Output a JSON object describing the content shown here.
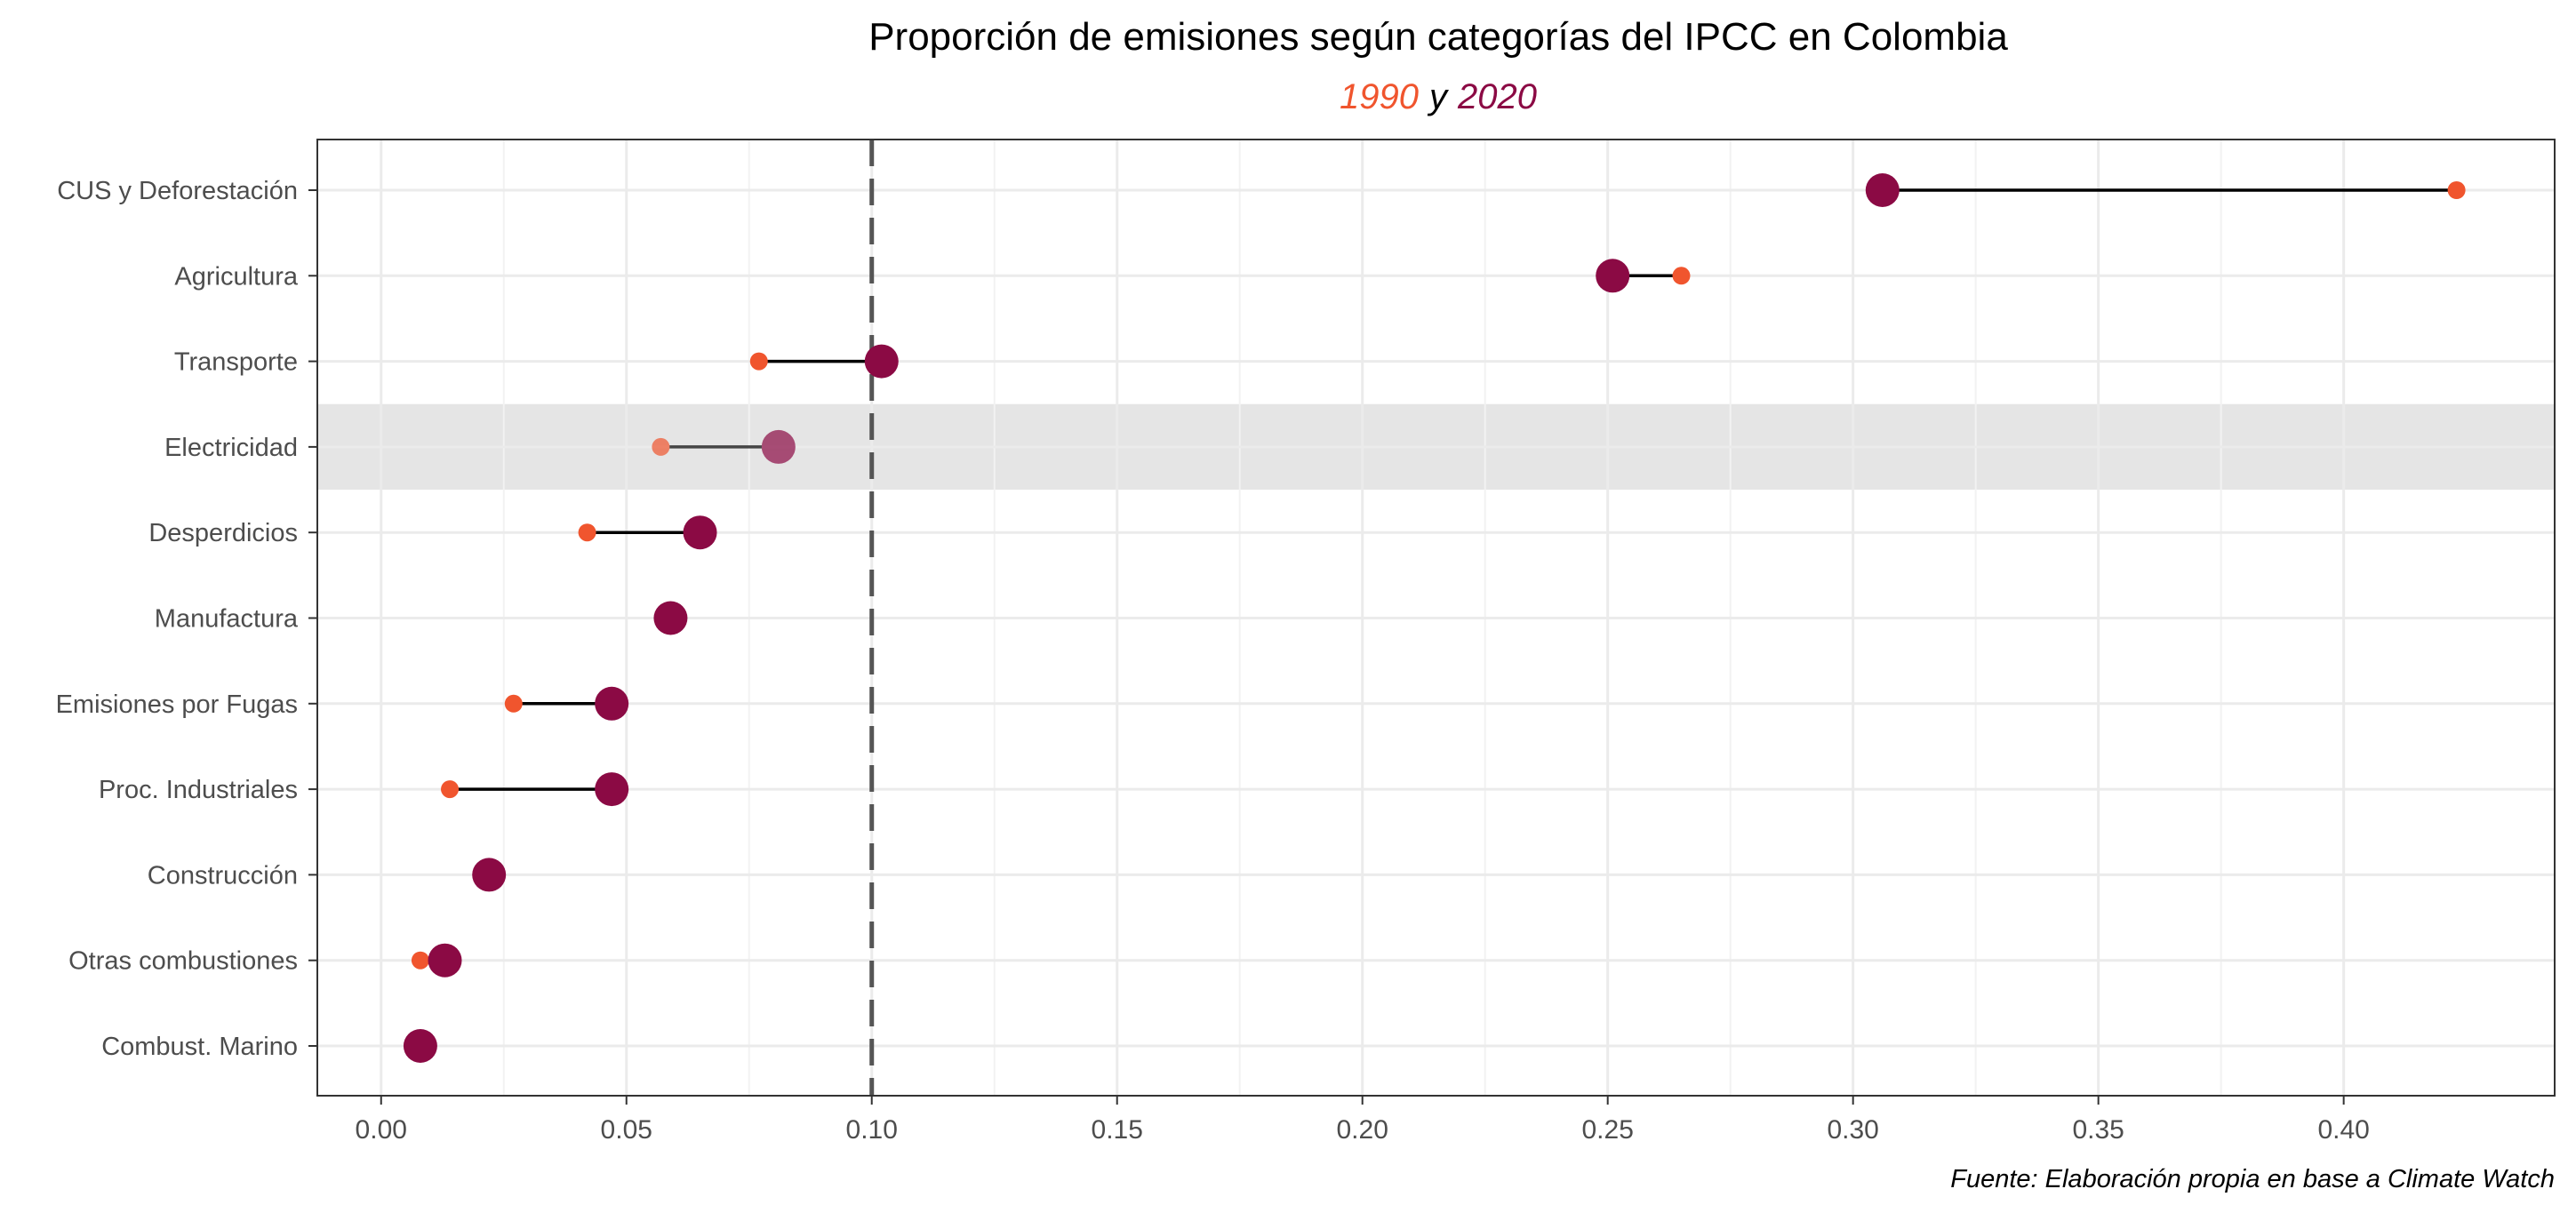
{
  "chart_data": {
    "type": "dumbbell",
    "title": "Proporción de emisiones según categorías del IPCC en Colombia",
    "subtitle": {
      "year_a": "1990",
      "connector": "y",
      "year_b": "2020"
    },
    "caption": "Fuente: Elaboración propia en base a Climate Watch",
    "categories": [
      "CUS y Deforestación",
      "Agricultura",
      "Transporte",
      "Electricidad",
      "Desperdicios",
      "Manufactura",
      "Emisiones por Fugas",
      "Proc. Industriales",
      "Construcción",
      "Otras combustiones",
      "Combust. Marino"
    ],
    "series": [
      {
        "name": "1990",
        "color": "#F0552E",
        "values": [
          0.423,
          0.265,
          0.077,
          0.057,
          0.042,
          0.059,
          0.027,
          0.014,
          0.022,
          0.008,
          0.009
        ]
      },
      {
        "name": "2020",
        "color": "#8B0A44",
        "values": [
          0.306,
          0.251,
          0.102,
          0.081,
          0.065,
          0.059,
          0.047,
          0.047,
          0.022,
          0.013,
          0.008
        ]
      }
    ],
    "highlight_category": "Electricidad",
    "reference_line": 0.1,
    "x_ticks": [
      0.0,
      0.05,
      0.1,
      0.15,
      0.2,
      0.25,
      0.3,
      0.35,
      0.4
    ],
    "x_tick_labels": [
      "0.00",
      "0.05",
      "0.10",
      "0.15",
      "0.20",
      "0.25",
      "0.30",
      "0.35",
      "0.40"
    ],
    "xlim": [
      -0.013,
      0.443
    ],
    "grid": true,
    "colors": {
      "highlight_band": "#E5E5E5",
      "grid_major": "#EBEBEB",
      "grid_minor": "#F2F2F2",
      "reference_line": "#555555",
      "connector": "#000000"
    }
  }
}
